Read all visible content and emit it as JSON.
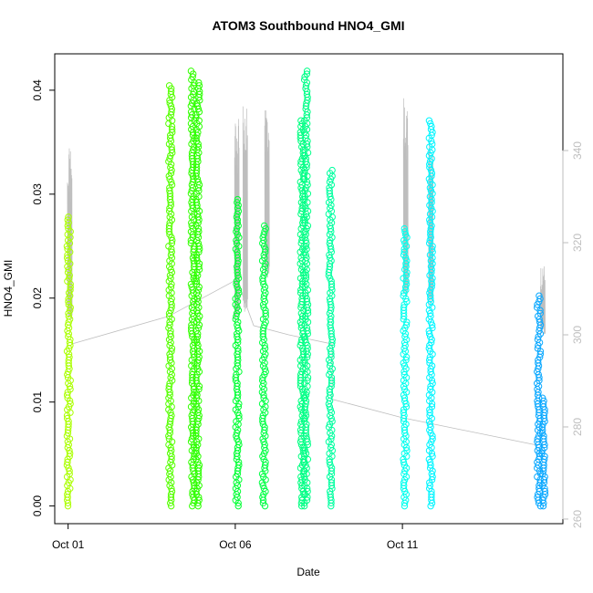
{
  "chart_data": {
    "type": "scatter",
    "title": "ATOM3 Southbound HNO4_GMI",
    "xlabel": "Date",
    "ylabel": "HNO4_GMI",
    "x_unit": "day of October",
    "xlim": [
      0.6,
      15.8
    ],
    "ylim": [
      -0.0017,
      0.0435
    ],
    "y2lim": [
      259,
      361
    ],
    "x_ticks": [
      {
        "value": 1,
        "label": "Oct 01"
      },
      {
        "value": 6,
        "label": "Oct 06"
      },
      {
        "value": 11,
        "label": "Oct 11"
      }
    ],
    "y_ticks": [
      {
        "value": 0.0,
        "label": "0.00"
      },
      {
        "value": 0.01,
        "label": "0.01"
      },
      {
        "value": 0.02,
        "label": "0.02"
      },
      {
        "value": 0.03,
        "label": "0.03"
      },
      {
        "value": 0.04,
        "label": "0.04"
      }
    ],
    "y2_ticks": [
      {
        "value": 260,
        "label": "260"
      },
      {
        "value": 280,
        "label": "280"
      },
      {
        "value": 300,
        "label": "300"
      },
      {
        "value": 320,
        "label": "320"
      },
      {
        "value": 340,
        "label": "340"
      }
    ],
    "marker_series": [
      {
        "x": 1.02,
        "ymin": 0.0,
        "ymax": 0.028,
        "color": "#aaff00"
      },
      {
        "x": 4.06,
        "ymin": 0.0,
        "ymax": 0.0405,
        "color": "#55ff00"
      },
      {
        "x": 4.73,
        "ymin": 0.0,
        "ymax": 0.042,
        "color": "#33ff00"
      },
      {
        "x": 4.88,
        "ymin": 0.0,
        "ymax": 0.041,
        "color": "#2bff00"
      },
      {
        "x": 6.06,
        "ymin": 0.0,
        "ymax": 0.0295,
        "color": "#00ff33"
      },
      {
        "x": 6.86,
        "ymin": 0.0,
        "ymax": 0.0272,
        "color": "#00ff44"
      },
      {
        "x": 8.0,
        "ymin": 0.0,
        "ymax": 0.0373,
        "color": "#00ff80"
      },
      {
        "x": 8.12,
        "ymin": 0.0,
        "ymax": 0.042,
        "color": "#00ff88"
      },
      {
        "x": 8.85,
        "ymin": 0.0,
        "ymax": 0.0323,
        "color": "#00ffa0"
      },
      {
        "x": 11.08,
        "ymin": 0.0,
        "ymax": 0.0268,
        "color": "#00ffee"
      },
      {
        "x": 11.85,
        "ymin": 0.0,
        "ymax": 0.0373,
        "color": "#00f5ff"
      },
      {
        "x": 15.08,
        "ymin": 0.0,
        "ymax": 0.0205,
        "color": "#0aa8ff"
      },
      {
        "x": 15.22,
        "ymin": 0.0,
        "ymax": 0.0105,
        "color": "#0aa8ff"
      }
    ],
    "pressure_series": {
      "color": "#bebebe",
      "spikes": [
        {
          "x": 1.05,
          "base": 303,
          "peak": 342
        },
        {
          "x": 6.05,
          "base": 303,
          "peak": 350
        },
        {
          "x": 6.3,
          "base": 305,
          "peak": 351
        },
        {
          "x": 6.95,
          "base": 312,
          "peak": 350
        },
        {
          "x": 11.1,
          "base": 308,
          "peak": 352
        },
        {
          "x": 11.85,
          "base": 306,
          "peak": 343
        },
        {
          "x": 15.2,
          "base": 300,
          "peak": 315
        }
      ],
      "connector": [
        [
          1.1,
          298
        ],
        [
          4.0,
          304
        ],
        [
          6.05,
          312
        ],
        [
          6.55,
          302
        ],
        [
          7.6,
          300
        ],
        [
          8.9,
          298
        ],
        [
          8.9,
          286
        ],
        [
          11.0,
          282
        ],
        [
          15.05,
          276
        ]
      ]
    }
  }
}
